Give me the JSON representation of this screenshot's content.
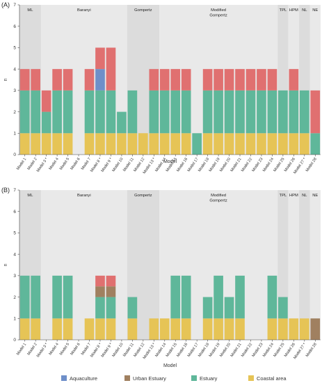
{
  "figure": {
    "legend": [
      {
        "key": "aquaculture",
        "label": "Aquaculture",
        "color": "#6e8fc9"
      },
      {
        "key": "urban",
        "label": "Urban Estuary",
        "color": "#a08060"
      },
      {
        "key": "estuary",
        "label": "Estuary",
        "color": "#5fb79a"
      },
      {
        "key": "coastal",
        "label": "Coastal area",
        "color": "#e6c456"
      }
    ],
    "top_color": "#e07070"
  },
  "chart_data": [
    {
      "panel_label": "(A)",
      "type": "bar",
      "stacked": true,
      "ylabel": "n",
      "xlabel": "Model",
      "ylim": [
        0,
        7
      ],
      "yticks": [
        0,
        1,
        2,
        3,
        4,
        5,
        6,
        7
      ],
      "grid": false,
      "categories": [
        "Model 1",
        "Model 2",
        "Model 3 *",
        "Model 4",
        "Model 5",
        "Model 6",
        "Model 7",
        "Model 8 *",
        "Model 9 *",
        "Model 10",
        "Model 11",
        "Model 12",
        "Model 13 *",
        "Model 14",
        "Model 15",
        "Model 16",
        "Model 17",
        "Model 18",
        "Model 19",
        "Model 20",
        "Model 21",
        "Model 22",
        "Model 23",
        "Model 24",
        "Model 25",
        "Model 26",
        "Model 27 *",
        "Model 28"
      ],
      "groups": [
        {
          "label": "ML",
          "from": 0,
          "to": 1
        },
        {
          "label": "Baranyi",
          "from": 2,
          "to": 9
        },
        {
          "label": "Gompertz",
          "from": 10,
          "to": 12
        },
        {
          "label": "Modified Gompertz",
          "from": 13,
          "to": 23
        },
        {
          "label": "TPL",
          "from": 24,
          "to": 24
        },
        {
          "label": "HPM",
          "from": 25,
          "to": 25
        },
        {
          "label": "NL",
          "from": 26,
          "to": 26
        },
        {
          "label": "NE",
          "from": 27,
          "to": 27
        }
      ],
      "series": [
        {
          "name": "Coastal area",
          "color": "#e6c456",
          "values": [
            1,
            1,
            1,
            1,
            1,
            0,
            1,
            1,
            1,
            1,
            1,
            1,
            1,
            1,
            1,
            1,
            0,
            1,
            1,
            1,
            1,
            1,
            1,
            1,
            1,
            1,
            1,
            0
          ]
        },
        {
          "name": "Estuary",
          "color": "#5fb79a",
          "values": [
            2,
            2,
            1,
            2,
            2,
            0,
            2,
            2,
            2,
            1,
            2,
            0,
            2,
            2,
            2,
            2,
            1,
            2,
            2,
            2,
            2,
            2,
            2,
            2,
            2,
            2,
            2,
            1
          ]
        },
        {
          "name": "Urban Estuary",
          "color": "#a08060",
          "values": [
            0,
            0,
            0,
            0,
            0,
            0,
            0,
            0,
            0,
            0,
            0,
            0,
            0,
            0,
            0,
            0,
            0,
            0,
            0,
            0,
            0,
            0,
            0,
            0,
            0,
            0,
            0,
            0
          ]
        },
        {
          "name": "Aquaculture",
          "color": "#6e8fc9",
          "values": [
            0,
            0,
            0,
            0,
            0,
            0,
            0,
            1,
            0,
            0,
            0,
            0,
            0,
            0,
            0,
            0,
            0,
            0,
            0,
            0,
            0,
            0,
            0,
            0,
            0,
            0,
            0,
            0
          ]
        },
        {
          "name": "",
          "color": "#e07070",
          "values": [
            1,
            1,
            1,
            1,
            1,
            0,
            1,
            1,
            2,
            0,
            0,
            0,
            1,
            1,
            1,
            1,
            0,
            1,
            1,
            1,
            1,
            1,
            1,
            1,
            0,
            1,
            0,
            2
          ]
        }
      ]
    },
    {
      "panel_label": "(B)",
      "type": "bar",
      "stacked": true,
      "ylabel": "n",
      "xlabel": "Model",
      "ylim": [
        0,
        7
      ],
      "yticks": [
        0,
        1,
        2,
        3,
        4,
        5,
        6,
        7
      ],
      "grid": false,
      "categories": [
        "Model 1",
        "Model 2",
        "Model 3 *",
        "Model 4",
        "Model 5",
        "Model 6",
        "Model 7",
        "Model 8 *",
        "Model 9 *",
        "Model 10",
        "Model 11",
        "Model 12",
        "Model 13 *",
        "Model 14",
        "Model 15",
        "Model 16",
        "Model 17",
        "Model 18",
        "Model 19",
        "Model 20",
        "Model 21",
        "Model 22",
        "Model 23",
        "Model 24",
        "Model 25",
        "Model 26",
        "Model 27 *",
        "Model 28"
      ],
      "groups": [
        {
          "label": "ML",
          "from": 0,
          "to": 1
        },
        {
          "label": "Baranyi",
          "from": 2,
          "to": 9
        },
        {
          "label": "Gompertz",
          "from": 10,
          "to": 12
        },
        {
          "label": "Modified Gompertz",
          "from": 13,
          "to": 23
        },
        {
          "label": "TPL",
          "from": 24,
          "to": 24
        },
        {
          "label": "HPM",
          "from": 25,
          "to": 25
        },
        {
          "label": "NL",
          "from": 26,
          "to": 26
        },
        {
          "label": "NE",
          "from": 27,
          "to": 27
        }
      ],
      "series": [
        {
          "name": "Coastal area",
          "color": "#e6c456",
          "values": [
            1,
            1,
            0,
            1,
            1,
            0,
            1,
            1,
            1,
            0,
            1,
            0,
            1,
            1,
            1,
            1,
            0,
            1,
            1,
            1,
            1,
            0,
            0,
            1,
            1,
            1,
            1,
            0
          ]
        },
        {
          "name": "Estuary",
          "color": "#5fb79a",
          "values": [
            2,
            2,
            0,
            2,
            2,
            0,
            0,
            1,
            1,
            0,
            1,
            0,
            0,
            0,
            2,
            2,
            0,
            1,
            2,
            1,
            2,
            0,
            0,
            2,
            1,
            0,
            0,
            0
          ]
        },
        {
          "name": "Urban Estuary",
          "color": "#a08060",
          "values": [
            0,
            0,
            0,
            0,
            0,
            0,
            0,
            0.5,
            0.5,
            0,
            0,
            0,
            0,
            0,
            0,
            0,
            0,
            0,
            0,
            0,
            0,
            0,
            0,
            0,
            0,
            0,
            0,
            1
          ]
        },
        {
          "name": "Aquaculture",
          "color": "#6e8fc9",
          "values": [
            0,
            0,
            0,
            0,
            0,
            0,
            0,
            0,
            0,
            0,
            0,
            0,
            0,
            0,
            0,
            0,
            0,
            0,
            0,
            0,
            0,
            0,
            0,
            0,
            0,
            0,
            0,
            0
          ]
        },
        {
          "name": "",
          "color": "#e07070",
          "values": [
            0,
            0,
            0,
            0,
            0,
            0,
            0,
            0.5,
            0.5,
            0,
            0,
            0,
            0,
            0,
            0,
            0,
            0,
            0,
            0,
            0,
            0,
            0,
            0,
            0,
            0,
            0,
            0,
            0
          ]
        }
      ]
    }
  ]
}
